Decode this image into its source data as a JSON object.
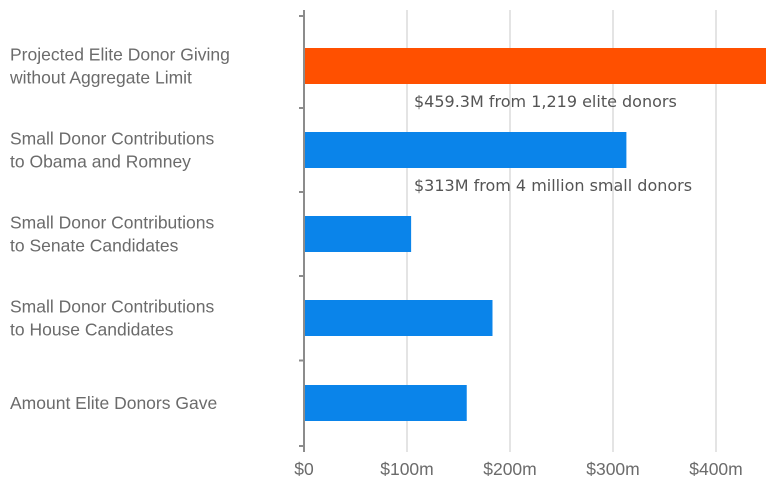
{
  "chart_data": {
    "type": "bar",
    "orientation": "horizontal",
    "categories": [
      [
        "Projected Elite Donor Giving",
        "without Aggregate Limit"
      ],
      [
        "Small Donor Contributions",
        "to Obama and Romney"
      ],
      [
        "Small Donor Contributions",
        "to Senate Candidates"
      ],
      [
        "Small Donor Contributions",
        "to House Candidates"
      ],
      [
        "Amount Elite Donors Gave"
      ]
    ],
    "values": [
      459.3,
      313,
      104,
      183,
      158
    ],
    "colors": [
      "#ff5000",
      "#0a84ea",
      "#0a84ea",
      "#0a84ea",
      "#0a84ea"
    ],
    "annotations": [
      {
        "category_index": 0,
        "text": "$459.3M from 1,219 elite donors"
      },
      {
        "category_index": 1,
        "text": "$313M from 4 million small donors"
      }
    ],
    "x_ticks": [
      0,
      100,
      200,
      300,
      400
    ],
    "x_tick_labels": [
      "$0",
      "$100m",
      "$200m",
      "$300m",
      "$400m"
    ],
    "xlim": [
      0,
      450
    ],
    "grid": true,
    "gridline_color": "#c8c8c8",
    "axis_color": "#8c8c8c"
  }
}
